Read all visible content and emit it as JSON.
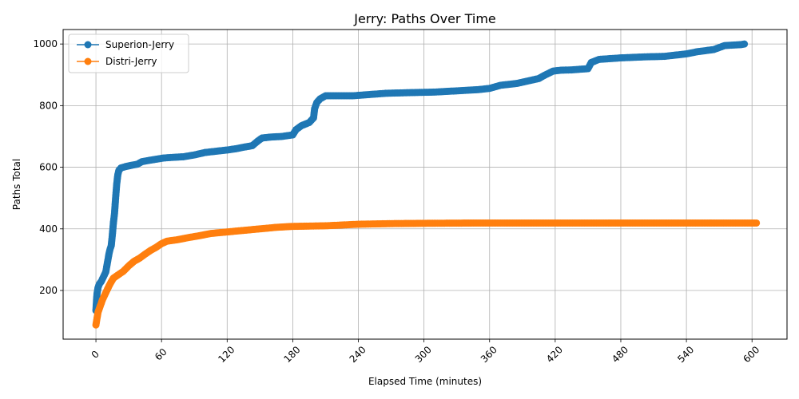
{
  "chart_data": {
    "type": "line",
    "title": "Jerry: Paths Over Time",
    "xlabel": "Elapsed Time (minutes)",
    "ylabel": "Paths Total",
    "xlim": [
      -30,
      632
    ],
    "ylim": [
      42,
      1047
    ],
    "x_ticks": [
      0,
      60,
      120,
      180,
      240,
      300,
      360,
      420,
      480,
      540,
      600
    ],
    "y_ticks": [
      200,
      400,
      600,
      800,
      1000
    ],
    "grid": true,
    "legend_position": "top-left",
    "series": [
      {
        "name": "Superion-Jerry",
        "color": "#1f77b4",
        "marker": "circle",
        "points": [
          [
            0,
            135
          ],
          [
            0.5,
            165
          ],
          [
            1,
            190
          ],
          [
            2,
            210
          ],
          [
            3,
            220
          ],
          [
            5,
            230
          ],
          [
            7,
            245
          ],
          [
            9,
            260
          ],
          [
            10,
            280
          ],
          [
            11,
            300
          ],
          [
            12,
            320
          ],
          [
            13,
            335
          ],
          [
            14,
            345
          ],
          [
            15,
            380
          ],
          [
            16,
            420
          ],
          [
            17,
            450
          ],
          [
            18,
            500
          ],
          [
            19,
            545
          ],
          [
            20,
            575
          ],
          [
            21,
            590
          ],
          [
            23,
            598
          ],
          [
            27,
            602
          ],
          [
            32,
            606
          ],
          [
            38,
            610
          ],
          [
            42,
            618
          ],
          [
            48,
            622
          ],
          [
            55,
            626
          ],
          [
            62,
            630
          ],
          [
            70,
            632
          ],
          [
            80,
            634
          ],
          [
            90,
            640
          ],
          [
            100,
            648
          ],
          [
            110,
            652
          ],
          [
            120,
            656
          ],
          [
            128,
            660
          ],
          [
            135,
            665
          ],
          [
            143,
            670
          ],
          [
            148,
            685
          ],
          [
            152,
            695
          ],
          [
            160,
            698
          ],
          [
            170,
            700
          ],
          [
            180,
            705
          ],
          [
            183,
            722
          ],
          [
            188,
            735
          ],
          [
            195,
            745
          ],
          [
            199,
            760
          ],
          [
            200,
            790
          ],
          [
            202,
            810
          ],
          [
            205,
            822
          ],
          [
            210,
            832
          ],
          [
            220,
            832
          ],
          [
            235,
            832
          ],
          [
            250,
            836
          ],
          [
            265,
            840
          ],
          [
            285,
            842
          ],
          [
            310,
            844
          ],
          [
            330,
            848
          ],
          [
            350,
            852
          ],
          [
            360,
            856
          ],
          [
            370,
            866
          ],
          [
            385,
            872
          ],
          [
            395,
            880
          ],
          [
            405,
            888
          ],
          [
            410,
            898
          ],
          [
            418,
            912
          ],
          [
            425,
            915
          ],
          [
            435,
            916
          ],
          [
            450,
            920
          ],
          [
            453,
            940
          ],
          [
            460,
            950
          ],
          [
            480,
            955
          ],
          [
            500,
            958
          ],
          [
            520,
            960
          ],
          [
            540,
            968
          ],
          [
            550,
            975
          ],
          [
            565,
            982
          ],
          [
            575,
            995
          ],
          [
            590,
            998
          ],
          [
            593,
            1000
          ]
        ]
      },
      {
        "name": "Distri-Jerry",
        "color": "#ff7f0e",
        "marker": "circle",
        "points": [
          [
            0,
            88
          ],
          [
            1,
            110
          ],
          [
            2,
            130
          ],
          [
            4,
            150
          ],
          [
            6,
            170
          ],
          [
            8,
            185
          ],
          [
            10,
            200
          ],
          [
            12,
            215
          ],
          [
            14,
            228
          ],
          [
            16,
            240
          ],
          [
            20,
            250
          ],
          [
            25,
            262
          ],
          [
            30,
            280
          ],
          [
            35,
            295
          ],
          [
            40,
            305
          ],
          [
            45,
            318
          ],
          [
            50,
            330
          ],
          [
            55,
            340
          ],
          [
            60,
            352
          ],
          [
            65,
            360
          ],
          [
            75,
            365
          ],
          [
            85,
            372
          ],
          [
            95,
            378
          ],
          [
            105,
            385
          ],
          [
            120,
            390
          ],
          [
            135,
            395
          ],
          [
            150,
            400
          ],
          [
            165,
            405
          ],
          [
            180,
            408
          ],
          [
            210,
            410
          ],
          [
            240,
            415
          ],
          [
            270,
            417
          ],
          [
            300,
            418
          ],
          [
            350,
            419
          ],
          [
            400,
            419
          ],
          [
            450,
            419
          ],
          [
            500,
            419
          ],
          [
            550,
            419
          ],
          [
            604,
            419
          ]
        ]
      }
    ]
  }
}
